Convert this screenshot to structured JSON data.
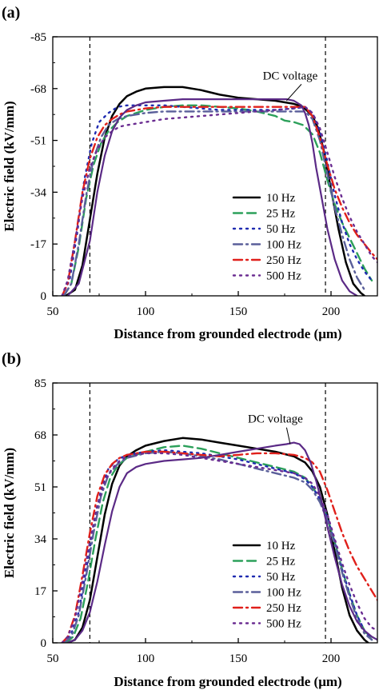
{
  "colors": {
    "10 Hz": "#000000",
    "25 Hz": "#2ca05a",
    "50 Hz": "#1f2bb0",
    "100 Hz": "#5a5f9a",
    "250 Hz": "#e0201b",
    "500 Hz": "#6a2c91",
    "DC voltage": "#5b2a86"
  },
  "chart_data": [
    {
      "panel_label": "(a)",
      "type": "line",
      "xlabel": "Distance from grounded electrode (μm)",
      "ylabel": "Electric field (kV/mm)",
      "xlim": [
        50,
        225
      ],
      "ylim": [
        0,
        -85
      ],
      "xticks": [
        50,
        100,
        150,
        200
      ],
      "yticks": [
        0,
        -17,
        -34,
        -51,
        -68,
        -85
      ],
      "vlines": [
        70,
        197
      ],
      "legend_position": "lower-right",
      "annotation": {
        "text": "DC voltage",
        "xy": [
          176,
          -64
        ],
        "text_at": [
          178,
          -71
        ]
      },
      "series": [
        {
          "name": "10 Hz",
          "style": "solid",
          "x": [
            57,
            62,
            66,
            70,
            74,
            78,
            82,
            86,
            90,
            95,
            100,
            110,
            120,
            130,
            140,
            150,
            160,
            170,
            180,
            185,
            190,
            193,
            196,
            200,
            204,
            208,
            212,
            216,
            218
          ],
          "y": [
            0,
            -2,
            -10,
            -25,
            -40,
            -52,
            -59,
            -63,
            -65.5,
            -67,
            -68,
            -68.5,
            -68.5,
            -67.5,
            -66,
            -65,
            -64.5,
            -64,
            -63,
            -62,
            -59,
            -55,
            -48,
            -35,
            -22,
            -11,
            -4,
            -1,
            0
          ]
        },
        {
          "name": "25 Hz",
          "style": "dashed",
          "x": [
            56,
            60,
            64,
            68,
            72,
            76,
            80,
            85,
            90,
            100,
            110,
            120,
            130,
            140,
            150,
            160,
            170,
            175,
            180,
            185,
            190,
            194,
            198,
            202,
            206,
            210,
            214,
            218,
            222
          ],
          "y": [
            0,
            -4,
            -16,
            -32,
            -43,
            -50,
            -54,
            -57,
            -59,
            -61,
            -62,
            -62.5,
            -62.5,
            -62,
            -61.5,
            -60.5,
            -59,
            -57.5,
            -57,
            -56,
            -53,
            -47,
            -38,
            -30,
            -24,
            -19,
            -14,
            -9,
            -5
          ]
        },
        {
          "name": "50 Hz",
          "style": "dotted",
          "x": [
            55,
            59,
            63,
            67,
            71,
            75,
            80,
            85,
            90,
            100,
            110,
            120,
            130,
            140,
            150,
            160,
            170,
            180,
            186,
            190,
            194,
            198,
            202,
            206,
            210,
            214,
            218,
            222
          ],
          "y": [
            0,
            -5,
            -20,
            -38,
            -50,
            -57,
            -60,
            -62,
            -62.5,
            -62.5,
            -62.5,
            -62,
            -61.5,
            -61,
            -61,
            -61,
            -61,
            -61.5,
            -62,
            -60,
            -54,
            -44,
            -33,
            -24,
            -17,
            -12,
            -8,
            -5
          ]
        },
        {
          "name": "100 Hz",
          "style": "dashdot",
          "x": [
            56,
            60,
            64,
            68,
            72,
            76,
            80,
            85,
            90,
            100,
            110,
            120,
            130,
            140,
            150,
            160,
            170,
            180,
            186,
            190,
            194,
            198,
            202,
            206,
            210,
            214,
            218
          ],
          "y": [
            0,
            -4,
            -17,
            -33,
            -45,
            -52,
            -56,
            -58,
            -59,
            -60,
            -60.5,
            -60.5,
            -60.5,
            -60.5,
            -60.5,
            -60.5,
            -60.5,
            -60.5,
            -60.5,
            -58,
            -51,
            -40,
            -29,
            -20,
            -12,
            -6,
            -2
          ]
        },
        {
          "name": "250 Hz",
          "style": "dashdot",
          "x": [
            55,
            58,
            62,
            66,
            70,
            74,
            78,
            82,
            86,
            90,
            100,
            110,
            120,
            130,
            140,
            150,
            160,
            170,
            180,
            186,
            190,
            194,
            198,
            202,
            206,
            210,
            214,
            218,
            222,
            225
          ],
          "y": [
            0,
            -4,
            -18,
            -34,
            -45,
            -52,
            -56,
            -58,
            -59.5,
            -60.5,
            -61.5,
            -62,
            -62,
            -62,
            -62,
            -62,
            -62,
            -62,
            -62,
            -62,
            -59,
            -52,
            -43,
            -35,
            -29,
            -24,
            -20,
            -17,
            -14,
            -12
          ]
        },
        {
          "name": "500 Hz",
          "style": "dotted",
          "x": [
            55,
            58,
            62,
            66,
            70,
            74,
            78,
            82,
            86,
            90,
            100,
            110,
            120,
            130,
            140,
            150,
            160,
            170,
            180,
            186,
            190,
            194,
            198,
            202,
            206,
            210,
            214,
            218,
            222,
            225
          ],
          "y": [
            0,
            -5,
            -18,
            -32,
            -42,
            -48,
            -52,
            -54,
            -55.5,
            -56,
            -57,
            -58,
            -58.5,
            -59,
            -59.5,
            -60,
            -60.5,
            -61,
            -61.5,
            -62,
            -60,
            -55,
            -47,
            -39,
            -32,
            -26,
            -21,
            -17,
            -13,
            -11
          ]
        },
        {
          "name": "DC voltage",
          "style": "solid",
          "x": [
            58,
            64,
            70,
            74,
            78,
            82,
            86,
            90,
            95,
            100,
            110,
            120,
            130,
            140,
            150,
            160,
            170,
            176,
            180,
            184,
            186,
            188,
            190,
            192,
            195,
            198,
            202,
            206,
            210,
            214
          ],
          "y": [
            0,
            -4,
            -18,
            -34,
            -46,
            -54,
            -58.5,
            -61,
            -62.5,
            -63.5,
            -64,
            -64.5,
            -64.5,
            -64.5,
            -64.5,
            -64.5,
            -64.5,
            -64.5,
            -64,
            -62.5,
            -60,
            -56,
            -50,
            -42,
            -32,
            -22,
            -12,
            -5,
            -1.5,
            0
          ]
        }
      ]
    },
    {
      "panel_label": "(b)",
      "type": "line",
      "xlabel": "Distance from grounded electrode (μm)",
      "ylabel": "Electric field (kV/mm)",
      "xlim": [
        50,
        225
      ],
      "ylim": [
        0,
        85
      ],
      "xticks": [
        50,
        100,
        150,
        200
      ],
      "yticks": [
        0,
        17,
        34,
        51,
        68,
        85
      ],
      "vlines": [
        70,
        197
      ],
      "legend_position": "lower-right",
      "annotation": {
        "text": "DC voltage",
        "xy": [
          178,
          65
        ],
        "text_at": [
          170,
          72
        ]
      },
      "series": [
        {
          "name": "10 Hz",
          "style": "solid",
          "x": [
            58,
            62,
            66,
            70,
            74,
            78,
            82,
            86,
            90,
            95,
            100,
            110,
            120,
            130,
            140,
            150,
            160,
            170,
            180,
            186,
            190,
            194,
            198,
            202,
            206,
            210,
            214,
            218,
            220
          ],
          "y": [
            0,
            1,
            5,
            14,
            28,
            42,
            52,
            58,
            61,
            63,
            64.5,
            66,
            67,
            66.5,
            65.5,
            64.5,
            63.5,
            62.5,
            61,
            59,
            56,
            51,
            42,
            30,
            18,
            9,
            4,
            1,
            0
          ]
        },
        {
          "name": "25 Hz",
          "style": "dashed",
          "x": [
            57,
            61,
            65,
            69,
            73,
            77,
            81,
            85,
            90,
            100,
            110,
            120,
            130,
            140,
            150,
            160,
            170,
            180,
            186,
            190,
            194,
            198,
            202,
            206,
            210,
            214,
            218,
            222
          ],
          "y": [
            0,
            2,
            8,
            20,
            34,
            46,
            54,
            58,
            60.5,
            62.5,
            64,
            64.5,
            63.5,
            62,
            60.5,
            59,
            57.5,
            56,
            54,
            51,
            47,
            41,
            33,
            24,
            16,
            9,
            4,
            1
          ]
        },
        {
          "name": "50 Hz",
          "style": "dotted",
          "x": [
            56,
            60,
            64,
            68,
            72,
            76,
            80,
            85,
            90,
            100,
            110,
            120,
            130,
            140,
            150,
            160,
            170,
            180,
            186,
            190,
            194,
            198,
            202,
            206,
            210,
            214,
            218,
            222
          ],
          "y": [
            0,
            3,
            10,
            24,
            38,
            50,
            57,
            60,
            61.5,
            62.5,
            63,
            62.5,
            62,
            61,
            60,
            58.5,
            57,
            55.5,
            53.5,
            51,
            47,
            41,
            33,
            24,
            16,
            9,
            4,
            1
          ]
        },
        {
          "name": "100 Hz",
          "style": "dashdot",
          "x": [
            56,
            60,
            64,
            68,
            72,
            76,
            80,
            85,
            90,
            100,
            110,
            120,
            130,
            140,
            150,
            160,
            170,
            180,
            186,
            190,
            194,
            198,
            202,
            206,
            210,
            214,
            218,
            222
          ],
          "y": [
            0,
            2,
            9,
            22,
            36,
            48,
            55,
            58.5,
            60.5,
            62,
            62.5,
            62,
            61,
            60,
            58.5,
            57,
            55.5,
            54,
            52.5,
            50,
            46,
            40,
            32,
            23,
            15,
            8,
            3,
            1
          ]
        },
        {
          "name": "250 Hz",
          "style": "dashdot",
          "x": [
            55,
            58,
            62,
            66,
            70,
            74,
            78,
            82,
            86,
            90,
            100,
            110,
            120,
            130,
            140,
            150,
            160,
            170,
            180,
            186,
            190,
            194,
            198,
            202,
            206,
            210,
            214,
            218,
            222,
            225
          ],
          "y": [
            0,
            2,
            9,
            22,
            36,
            48,
            55,
            58.5,
            60.5,
            61.5,
            62.5,
            62.5,
            62,
            61.5,
            61,
            61.5,
            62,
            62,
            61.5,
            60.5,
            59,
            56,
            50,
            43,
            36,
            30,
            25,
            21,
            17,
            14
          ]
        },
        {
          "name": "500 Hz",
          "style": "dotted",
          "x": [
            55,
            58,
            62,
            66,
            70,
            74,
            78,
            82,
            86,
            90,
            100,
            110,
            120,
            130,
            140,
            150,
            160,
            170,
            180,
            186,
            190,
            194,
            198,
            202,
            206,
            210,
            214,
            218,
            222,
            225
          ],
          "y": [
            0,
            2,
            8,
            20,
            33,
            45,
            53,
            57,
            59.5,
            61,
            62,
            62,
            61.5,
            60.5,
            59.5,
            58.5,
            57.5,
            56.5,
            55.5,
            54,
            52,
            48,
            42,
            34,
            26,
            19,
            13,
            8,
            5,
            4
          ]
        },
        {
          "name": "DC voltage",
          "style": "solid",
          "x": [
            58,
            62,
            66,
            70,
            74,
            78,
            82,
            86,
            90,
            95,
            100,
            110,
            120,
            130,
            140,
            150,
            160,
            170,
            176,
            180,
            183,
            186,
            189,
            192,
            195,
            198,
            202,
            206,
            210,
            214,
            218,
            222,
            225
          ],
          "y": [
            0,
            1,
            4,
            10,
            20,
            32,
            43,
            51,
            55.5,
            57.5,
            58.5,
            59.5,
            60,
            60.5,
            61.5,
            62.5,
            63.5,
            64.5,
            65,
            65.5,
            65,
            63,
            59,
            53,
            46,
            38,
            28,
            19,
            12,
            7,
            4,
            2,
            1
          ]
        }
      ]
    }
  ]
}
